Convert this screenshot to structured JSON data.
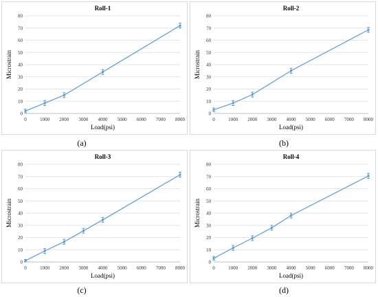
{
  "chart_data": [
    {
      "type": "line",
      "title": "Roll-1",
      "xlabel": "Load(psi)",
      "ylabel": "Microstrain",
      "caption": "(a)",
      "x_ticks": [
        0,
        1000,
        2000,
        3000,
        4000,
        5000,
        6000,
        7000,
        8000
      ],
      "y_ticks": [
        0,
        10,
        20,
        30,
        40,
        50,
        60,
        70,
        80
      ],
      "xlim": [
        0,
        8000
      ],
      "ylim": [
        0,
        80
      ],
      "grid": "horizontal",
      "x": [
        0,
        1000,
        2000,
        4000,
        8000
      ],
      "y": [
        2,
        8.5,
        15,
        34,
        72
      ],
      "error": [
        1.5,
        2,
        2,
        2,
        2
      ],
      "color": "#5b9bd5"
    },
    {
      "type": "line",
      "title": "Roll-2",
      "xlabel": "Load(psi)",
      "ylabel": "Microstrain",
      "caption": "(b)",
      "x_ticks": [
        0,
        1000,
        2000,
        3000,
        4000,
        5000,
        6000,
        7000,
        8000
      ],
      "y_ticks": [
        0,
        10,
        20,
        30,
        40,
        50,
        60,
        70,
        80
      ],
      "xlim": [
        0,
        8000
      ],
      "ylim": [
        0,
        80
      ],
      "grid": "horizontal",
      "x": [
        0,
        1000,
        2000,
        4000,
        8000
      ],
      "y": [
        3,
        8.5,
        15.5,
        35,
        68.5
      ],
      "error": [
        1.5,
        2,
        2,
        2,
        2
      ],
      "color": "#5b9bd5"
    },
    {
      "type": "line",
      "title": "Roll-3",
      "xlabel": "Load(psi)",
      "ylabel": "Microstrain",
      "caption": "(c)",
      "x_ticks": [
        0,
        1000,
        2000,
        3000,
        4000,
        5000,
        6000,
        7000,
        8000
      ],
      "y_ticks": [
        0,
        10,
        20,
        30,
        40,
        50,
        60,
        70,
        80
      ],
      "xlim": [
        0,
        8000
      ],
      "ylim": [
        0,
        80
      ],
      "grid": "horizontal",
      "x": [
        0,
        1000,
        2000,
        3000,
        4000,
        8000
      ],
      "y": [
        1,
        9,
        16.5,
        25.5,
        34.5,
        71.5
      ],
      "error": [
        1,
        2,
        2,
        2,
        2,
        2
      ],
      "color": "#5b9bd5"
    },
    {
      "type": "line",
      "title": "Roll-4",
      "xlabel": "Load(psi)",
      "ylabel": "Microstrain",
      "caption": "(d)",
      "x_ticks": [
        0,
        1000,
        2000,
        3000,
        4000,
        5000,
        6000,
        7000,
        8000
      ],
      "y_ticks": [
        0,
        10,
        20,
        30,
        40,
        50,
        60,
        70,
        80
      ],
      "xlim": [
        0,
        8000
      ],
      "ylim": [
        0,
        80
      ],
      "grid": "horizontal",
      "x": [
        0,
        1000,
        2000,
        3000,
        4000,
        8000
      ],
      "y": [
        3,
        11.5,
        19.5,
        28,
        38,
        70.5
      ],
      "error": [
        1.5,
        2,
        2,
        2,
        2,
        2
      ],
      "color": "#5b9bd5"
    }
  ]
}
